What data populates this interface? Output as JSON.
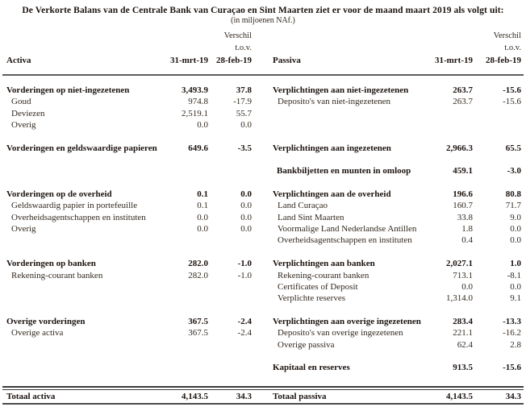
{
  "title": "De Verkorte Balans van de Centrale Bank van Curaçao en Sint Maarten ziet er voor de maand maart 2019 als volgt uit:",
  "subtitle": "(in miljoenen NAf.)",
  "header": {
    "verschil": "Verschil",
    "tov": "t.o.v.",
    "activa": "Activa",
    "passiva": "Passiva",
    "col_date": "31-mrt-19",
    "col_diff": "28-feb-19"
  },
  "table": {
    "rows": [
      {
        "a": [
          "Vorderingen op niet-ingezetenen",
          "3,493.9",
          "37.8"
        ],
        "as": "section",
        "p": [
          "Verplichtingen aan niet-ingezetenen",
          "263.7",
          "-15.6"
        ],
        "ps": "section"
      },
      {
        "a": [
          "Goud",
          "974.8",
          "-17.9"
        ],
        "as": "item",
        "p": [
          "Deposito's van niet-ingezetenen",
          "263.7",
          "-15.6"
        ],
        "ps": "item"
      },
      {
        "a": [
          "Deviezen",
          "2,519.1",
          "55.7"
        ],
        "as": "item",
        "p": [
          "",
          "",
          ""
        ],
        "ps": "item"
      },
      {
        "a": [
          "Overig",
          "0.0",
          "0.0"
        ],
        "as": "item",
        "p": [
          "",
          "",
          ""
        ],
        "ps": "item"
      },
      {
        "a": [
          "",
          "",
          ""
        ],
        "as": "item",
        "p": [
          "",
          "",
          ""
        ],
        "ps": "item"
      },
      {
        "a": [
          "Vorderingen en geldswaardige papieren",
          "649.6",
          "-3.5"
        ],
        "as": "section",
        "p": [
          "Verplichtingen aan ingezetenen",
          "2,966.3",
          "65.5"
        ],
        "ps": "section"
      },
      {
        "a": [
          "",
          "",
          ""
        ],
        "as": "item",
        "p": [
          "",
          "",
          ""
        ],
        "ps": "item"
      },
      {
        "a": [
          "",
          "",
          ""
        ],
        "as": "item",
        "p": [
          "Bankbiljetten en munten in omloop",
          "459.1",
          "-3.0"
        ],
        "ps": "bolditem"
      },
      {
        "a": [
          "",
          "",
          ""
        ],
        "as": "item",
        "p": [
          "",
          "",
          ""
        ],
        "ps": "item"
      },
      {
        "a": [
          "Vorderingen op de overheid",
          "0.1",
          "0.0"
        ],
        "as": "section",
        "p": [
          "Verplichtingen aan de overheid",
          "196.6",
          "80.8"
        ],
        "ps": "section"
      },
      {
        "a": [
          "Geldswaardig papier in portefeuille",
          "0.1",
          "0.0"
        ],
        "as": "item",
        "p": [
          "Land Curaçao",
          "160.7",
          "71.7"
        ],
        "ps": "item"
      },
      {
        "a": [
          "Overheidsagentschappen en instituten",
          "0.0",
          "0.0"
        ],
        "as": "item",
        "p": [
          "Land Sint Maarten",
          "33.8",
          "9.0"
        ],
        "ps": "item"
      },
      {
        "a": [
          "Overig",
          "0.0",
          "0.0"
        ],
        "as": "item",
        "p": [
          "Voormalige Land Nederlandse Antillen",
          "1.8",
          "0.0"
        ],
        "ps": "item"
      },
      {
        "a": [
          "",
          "",
          ""
        ],
        "as": "item",
        "p": [
          "Overheidsagentschappen en instituten",
          "0.4",
          "0.0"
        ],
        "ps": "item"
      },
      {
        "a": [
          "",
          "",
          ""
        ],
        "as": "item",
        "p": [
          "",
          "",
          ""
        ],
        "ps": "item"
      },
      {
        "a": [
          "Vorderingen op banken",
          "282.0",
          "-1.0"
        ],
        "as": "section",
        "p": [
          "Verplichtingen aan banken",
          "2,027.1",
          "1.0"
        ],
        "ps": "section"
      },
      {
        "a": [
          "Rekening-courant banken",
          "282.0",
          "-1.0"
        ],
        "as": "item",
        "p": [
          "Rekening-courant banken",
          "713.1",
          "-8.1"
        ],
        "ps": "item"
      },
      {
        "a": [
          "",
          "",
          ""
        ],
        "as": "item",
        "p": [
          "Certificates of Deposit",
          "0.0",
          "0.0"
        ],
        "ps": "item"
      },
      {
        "a": [
          "",
          "",
          ""
        ],
        "as": "item",
        "p": [
          "Verplichte reserves",
          "1,314.0",
          "9.1"
        ],
        "ps": "item"
      },
      {
        "a": [
          "",
          "",
          ""
        ],
        "as": "item",
        "p": [
          "",
          "",
          ""
        ],
        "ps": "item"
      },
      {
        "a": [
          "Overige vorderingen",
          "367.5",
          "-2.4"
        ],
        "as": "section",
        "p": [
          "Verplichtingen aan overige ingezetenen",
          "283.4",
          "-13.3"
        ],
        "ps": "section"
      },
      {
        "a": [
          "Overige activa",
          "367.5",
          "-2.4"
        ],
        "as": "item",
        "p": [
          "Deposito's van overige ingezetenen",
          "221.1",
          "-16.2"
        ],
        "ps": "item"
      },
      {
        "a": [
          "",
          "",
          ""
        ],
        "as": "item",
        "p": [
          "Overige passiva",
          "62.4",
          "2.8"
        ],
        "ps": "item"
      },
      {
        "a": [
          "",
          "",
          ""
        ],
        "as": "item",
        "p": [
          "",
          "",
          ""
        ],
        "ps": "item"
      },
      {
        "a": [
          "",
          "",
          ""
        ],
        "as": "item",
        "p": [
          "Kapitaal en reserves",
          "913.5",
          "-15.6"
        ],
        "ps": "section"
      },
      {
        "a": [
          "",
          "",
          ""
        ],
        "as": "item",
        "p": [
          "",
          "",
          ""
        ],
        "ps": "item"
      }
    ],
    "totals": {
      "a": [
        "Totaal activa",
        "4,143.5",
        "34.3"
      ],
      "as": "section",
      "p": [
        "Totaal passiva",
        "4,143.5",
        "34.3"
      ],
      "ps": "section"
    }
  }
}
